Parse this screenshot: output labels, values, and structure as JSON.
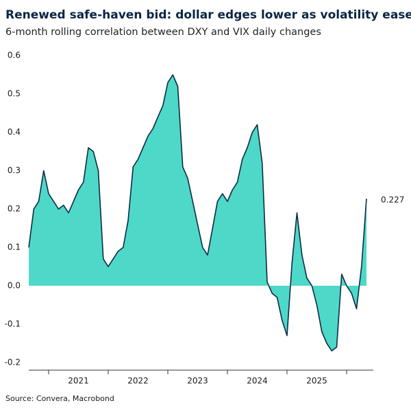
{
  "chart_data": {
    "type": "area",
    "title": "Renewed safe-haven bid: dollar edges lower as volatility eases",
    "subtitle": "6-month rolling correlation between DXY and VIX daily changes",
    "source": "Source: Convera, Macrobond",
    "categories": [
      null,
      null,
      null,
      null,
      null,
      null,
      null,
      null,
      null,
      null,
      "2021",
      null,
      null,
      null,
      null,
      null,
      null,
      null,
      null,
      null,
      null,
      null,
      "2022",
      null,
      null,
      null,
      null,
      null,
      null,
      null,
      null,
      null,
      null,
      null,
      "2023",
      null,
      null,
      null,
      null,
      null,
      null,
      null,
      null,
      null,
      null,
      null,
      "2024",
      null,
      null,
      null,
      null,
      null,
      null,
      null,
      null,
      null,
      null,
      null,
      "2025",
      null,
      null,
      null,
      null,
      null,
      null,
      null,
      null,
      null,
      null
    ],
    "values": [
      0.1,
      0.2,
      0.22,
      0.3,
      0.24,
      0.22,
      0.2,
      0.21,
      0.19,
      0.22,
      0.25,
      0.27,
      0.36,
      0.35,
      0.3,
      0.07,
      0.05,
      0.07,
      0.09,
      0.1,
      0.17,
      0.31,
      0.33,
      0.36,
      0.39,
      0.41,
      0.44,
      0.47,
      0.53,
      0.55,
      0.52,
      0.31,
      0.28,
      0.22,
      0.16,
      0.1,
      0.08,
      0.15,
      0.22,
      0.24,
      0.22,
      0.25,
      0.27,
      0.33,
      0.36,
      0.4,
      0.42,
      0.32,
      0.01,
      -0.02,
      -0.03,
      -0.09,
      -0.13,
      0.06,
      0.19,
      0.08,
      0.02,
      0.0,
      -0.05,
      -0.12,
      -0.15,
      -0.17,
      -0.16,
      0.03,
      0.0,
      -0.02,
      -0.06,
      0.05,
      0.227
    ],
    "color": "#4dd8c8",
    "line_color": "#0d2b45",
    "ylim": [
      -0.22,
      0.62
    ],
    "yticks": [
      -0.2,
      -0.1,
      {
        "value": 0,
        "label": "0.0"
      },
      0.1,
      0.2,
      0.3,
      0.4,
      0.5,
      0.6
    ],
    "grid": false
  }
}
